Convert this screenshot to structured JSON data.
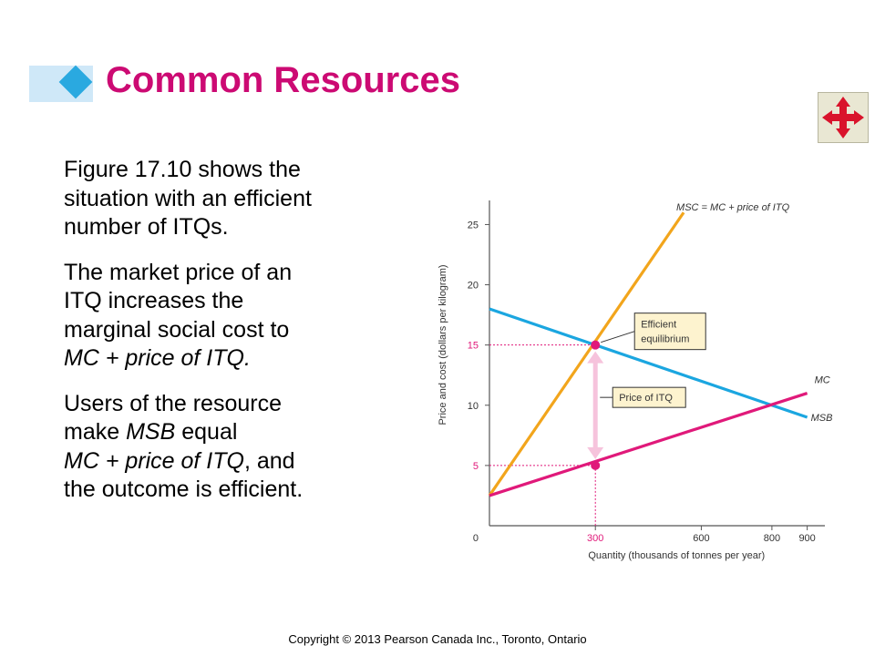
{
  "slide": {
    "title": "Common Resources",
    "nav_icon": "four-way-arrows-icon",
    "colors": {
      "title": "#cc0a73",
      "accent_diamond": "#2aa9e0",
      "accent_bar": "#cfe8f8"
    },
    "paragraphs": [
      [
        "Figure 17.10 shows the",
        "situation with an efficient",
        "number of ITQs."
      ],
      [
        "The market price of an",
        "ITQ increases the",
        "marginal social cost to",
        "MC + price of ITQ."
      ],
      [
        "Users of the resource",
        "make MSB equal",
        "MC + price of ITQ, and",
        "the outcome is efficient."
      ]
    ],
    "copyright": "Copyright © 2013 Pearson Canada Inc., Toronto, Ontario"
  },
  "chart_data": {
    "type": "line",
    "xlabel": "Quantity (thousands of tonnes per year)",
    "ylabel": "Price and cost (dollars per kilogram)",
    "xlim": [
      0,
      950
    ],
    "ylim": [
      0,
      27
    ],
    "x_ticks": [
      0,
      300,
      600,
      800,
      900
    ],
    "y_ticks": [
      5,
      10,
      15,
      20,
      25
    ],
    "grid": false,
    "series": [
      {
        "name": "MSC = MC + price of ITQ",
        "color": "#f2a51c",
        "points": [
          [
            0,
            2.5
          ],
          [
            550,
            26
          ]
        ]
      },
      {
        "name": "MSB",
        "color": "#1ba6e0",
        "points": [
          [
            0,
            18
          ],
          [
            900,
            9
          ]
        ]
      },
      {
        "name": "MC",
        "color": "#e0197a",
        "points": [
          [
            0,
            2.5
          ],
          [
            900,
            11
          ]
        ]
      }
    ],
    "highlight_x": 300,
    "equilibrium": {
      "x": 300,
      "y": 15
    },
    "mc_point": {
      "x": 300,
      "y": 5
    },
    "annotations": {
      "efficient": [
        "Efficient",
        "equilibrium"
      ],
      "price_itq": "Price of ITQ"
    },
    "colors": {
      "label_box_fill": "#fdf3cf",
      "gap_arrow": "#f6c3dc",
      "marker": "#e0197a",
      "axis": "#555555"
    }
  }
}
